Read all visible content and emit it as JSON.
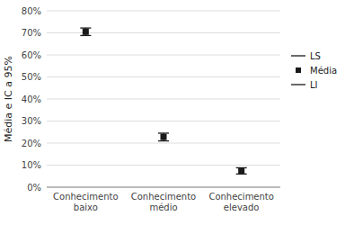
{
  "chart_data": {
    "type": "errorbar",
    "y_label": "Média e IC a 95%",
    "categories": [
      "Conhecimento\nbaixo",
      "Conhecimento\nmédio",
      "Conhecimento\nelevado"
    ],
    "series": [
      {
        "name": "LS",
        "color": "#1a1a1a",
        "line_style": "solid",
        "values": [
          0.722,
          0.245,
          0.088
        ]
      },
      {
        "name": "Média",
        "color": "#1a1a1a",
        "marker": "square",
        "values": [
          0.705,
          0.228,
          0.075
        ]
      },
      {
        "name": "LI",
        "color": "#1a1a1a",
        "line_style": "solid",
        "values": [
          0.688,
          0.21,
          0.06
        ]
      }
    ],
    "ylim": [
      0.0,
      0.8
    ],
    "yticks": [
      {
        "value": 0.0,
        "label": "0%"
      },
      {
        "value": 0.1,
        "label": "10%"
      },
      {
        "value": 0.2,
        "label": "20%"
      },
      {
        "value": 0.3,
        "label": "30%"
      },
      {
        "value": 0.4,
        "label": "40%"
      },
      {
        "value": 0.5,
        "label": "50%"
      },
      {
        "value": 0.6,
        "label": "60%"
      },
      {
        "value": 0.7,
        "label": "70%"
      },
      {
        "value": 0.8,
        "label": "80%"
      }
    ],
    "grid": true,
    "legend": "right"
  }
}
